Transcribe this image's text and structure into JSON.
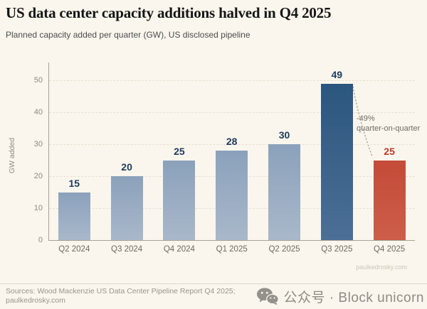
{
  "header": {
    "title": "US data center capacity additions halved in Q4 2025",
    "subtitle": "Planned capacity added per quarter (GW), US disclosed pipeline"
  },
  "chart_data": {
    "type": "bar",
    "categories": [
      "Q2 2024",
      "Q3 2024",
      "Q4 2024",
      "Q1 2025",
      "Q2 2025",
      "Q3 2025",
      "Q4 2025"
    ],
    "values": [
      15,
      20,
      25,
      28,
      30,
      49,
      25
    ],
    "roles": [
      "normal",
      "normal",
      "normal",
      "normal",
      "normal",
      "peak",
      "drop"
    ],
    "title": "US data center capacity additions halved in Q4 2025",
    "xlabel": "",
    "ylabel": "GW added",
    "yticks": [
      0,
      10,
      20,
      30,
      40,
      50
    ],
    "ylim": [
      0,
      55
    ],
    "grid": "horizontal-dashed",
    "legend": "none",
    "annotation": {
      "line1": "-49%",
      "line2": "quarter-on-quarter"
    },
    "watermark": "paulkedrosky.com",
    "colors": {
      "background": "#faf6ed",
      "bar_normal_top": "#8ba1bb",
      "bar_normal_bottom": "#a9b8ca",
      "bar_peak_top": "#2b567e",
      "bar_peak_bottom": "#4c6f96",
      "bar_drop_top": "#c34b38",
      "bar_drop_bottom": "#cd5e49",
      "value_label_navy": "#1d3b5d",
      "value_label_red": "#b93a2b"
    }
  },
  "footer": {
    "sources_line1": "Sources: Wood Mackenzie US Data Center Pipeline Report Q4 2025;",
    "sources_line2": "paulkedrosky.com",
    "badge_text": "公众号 · Block unicorn"
  }
}
